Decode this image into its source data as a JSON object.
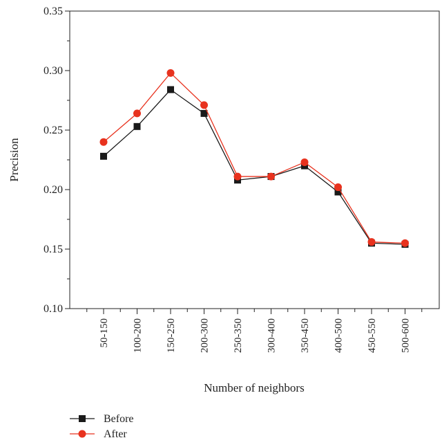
{
  "chart_data": {
    "type": "line",
    "xlabel": "Number of neighbors",
    "ylabel": "Precision",
    "categories": [
      "50-150",
      "100-200",
      "150-250",
      "200-300",
      "250-350",
      "300-400",
      "350-450",
      "400-500",
      "450-550",
      "500-600"
    ],
    "ylim": [
      0.1,
      0.35
    ],
    "yticks": [
      "0.10",
      "0.15",
      "0.20",
      "0.25",
      "0.30",
      "0.35"
    ],
    "grid": false,
    "legend_position": "bottom-left",
    "series": [
      {
        "name": "Before",
        "color": "#1a1a1a",
        "marker": "square",
        "values": [
          0.228,
          0.253,
          0.284,
          0.264,
          0.208,
          0.211,
          0.22,
          0.198,
          0.155,
          0.154
        ]
      },
      {
        "name": "After",
        "color": "#e8321e",
        "marker": "circle",
        "values": [
          0.24,
          0.264,
          0.298,
          0.271,
          0.211,
          0.211,
          0.223,
          0.202,
          0.156,
          0.155
        ]
      }
    ]
  }
}
